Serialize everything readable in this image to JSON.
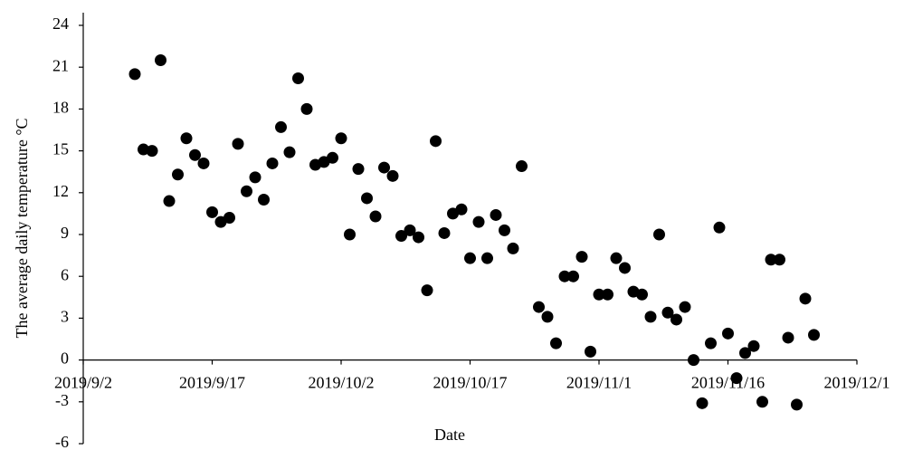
{
  "chart_data": {
    "type": "scatter",
    "x_label": "Date",
    "y_label": "The average daily temperature °C",
    "color": "#000000",
    "xlim": [
      "2019/9/2",
      "2019/12/1"
    ],
    "xticks": [
      "2019/9/2",
      "2019/9/17",
      "2019/10/2",
      "2019/10/17",
      "2019/11/1",
      "2019/11/16",
      "2019/12/1"
    ],
    "ylim": [
      -6,
      24
    ],
    "yticks": [
      -6,
      -3,
      0,
      3,
      6,
      9,
      12,
      15,
      18,
      21,
      24
    ],
    "grid": false,
    "x": [
      "2019/9/8",
      "2019/9/9",
      "2019/9/10",
      "2019/9/11",
      "2019/9/12",
      "2019/9/13",
      "2019/9/14",
      "2019/9/15",
      "2019/9/16",
      "2019/9/17",
      "2019/9/18",
      "2019/9/19",
      "2019/9/20",
      "2019/9/21",
      "2019/9/22",
      "2019/9/23",
      "2019/9/24",
      "2019/9/25",
      "2019/9/26",
      "2019/9/27",
      "2019/9/28",
      "2019/9/29",
      "2019/9/30",
      "2019/10/1",
      "2019/10/2",
      "2019/10/3",
      "2019/10/4",
      "2019/10/5",
      "2019/10/6",
      "2019/10/7",
      "2019/10/8",
      "2019/10/9",
      "2019/10/10",
      "2019/10/11",
      "2019/10/12",
      "2019/10/13",
      "2019/10/14",
      "2019/10/15",
      "2019/10/16",
      "2019/10/17",
      "2019/10/18",
      "2019/10/19",
      "2019/10/20",
      "2019/10/21",
      "2019/10/22",
      "2019/10/23",
      "2019/10/25",
      "2019/10/26",
      "2019/10/27",
      "2019/10/28",
      "2019/10/29",
      "2019/10/30",
      "2019/10/31",
      "2019/11/1",
      "2019/11/2",
      "2019/11/3",
      "2019/11/4",
      "2019/11/5",
      "2019/11/6",
      "2019/11/7",
      "2019/11/8",
      "2019/11/9",
      "2019/11/10",
      "2019/11/11",
      "2019/11/12",
      "2019/11/13",
      "2019/11/14",
      "2019/11/15",
      "2019/11/16",
      "2019/11/17",
      "2019/11/18",
      "2019/11/19",
      "2019/11/20",
      "2019/11/21",
      "2019/11/22",
      "2019/11/23",
      "2019/11/24",
      "2019/11/25",
      "2019/11/26"
    ],
    "values": [
      20.5,
      15.1,
      15.0,
      21.5,
      11.4,
      13.3,
      15.9,
      14.7,
      14.1,
      10.6,
      9.9,
      10.2,
      15.5,
      12.1,
      13.1,
      11.5,
      14.1,
      16.7,
      14.9,
      20.2,
      18.0,
      14.0,
      14.2,
      14.5,
      15.9,
      9.0,
      13.7,
      11.6,
      10.3,
      13.8,
      13.2,
      8.9,
      9.3,
      8.8,
      5.0,
      15.7,
      9.1,
      10.5,
      10.8,
      7.3,
      9.9,
      7.3,
      10.4,
      9.3,
      8.0,
      13.9,
      3.8,
      3.1,
      1.2,
      6.0,
      6.0,
      7.4,
      0.6,
      4.7,
      4.7,
      7.3,
      6.6,
      4.9,
      4.7,
      3.1,
      9.0,
      3.4,
      2.9,
      3.8,
      0.0,
      -3.1,
      1.2,
      9.5,
      1.9,
      -1.3,
      0.5,
      1.0,
      -3.0,
      7.2,
      7.2,
      1.6,
      -3.2,
      4.4,
      1.8
    ]
  }
}
